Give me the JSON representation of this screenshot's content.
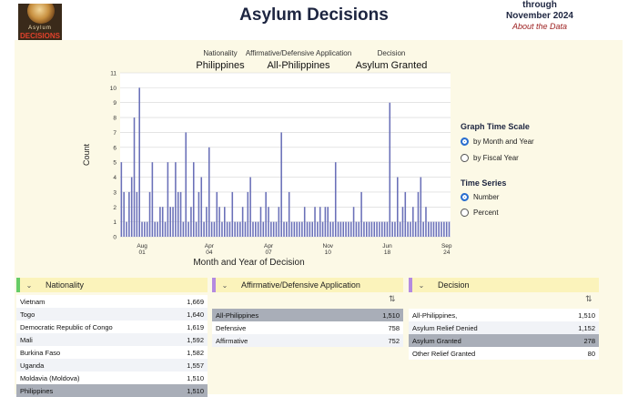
{
  "header": {
    "title": "Asylum Decisions",
    "through_top": "through",
    "through_date": "November 2024",
    "about_link": "About the Data",
    "logo_small": "Asylum",
    "logo_big": "DECISIONS"
  },
  "filters": [
    {
      "label": "Nationality",
      "value": "Philippines"
    },
    {
      "label": "Affirmative/Defensive Application",
      "value": "All-Philippines"
    },
    {
      "label": "Decision",
      "value": "Asylum Granted"
    }
  ],
  "controls": {
    "time_scale_title": "Graph Time Scale",
    "time_scale_options": [
      {
        "label": "by Month and Year",
        "selected": true
      },
      {
        "label": "by Fiscal Year",
        "selected": false
      }
    ],
    "series_title": "Time Series",
    "series_options": [
      {
        "label": "Number",
        "selected": true
      },
      {
        "label": "Percent",
        "selected": false
      }
    ]
  },
  "chart_data": {
    "type": "bar",
    "xlabel": "Month and Year of Decision",
    "ylabel": "Count",
    "ylim": [
      0,
      11
    ],
    "yticks": [
      "0",
      "1",
      "2",
      "3",
      "4",
      "5",
      "6",
      "7",
      "8",
      "9",
      "10",
      "11"
    ],
    "xticks": [
      {
        "top": "Aug",
        "bottom": "01",
        "index": 8
      },
      {
        "top": "Apr",
        "bottom": "04",
        "index": 34
      },
      {
        "top": "Apr",
        "bottom": "07",
        "index": 57
      },
      {
        "top": "Nov",
        "bottom": "10",
        "index": 80
      },
      {
        "top": "Jun",
        "bottom": "18",
        "index": 103
      },
      {
        "top": "Sep",
        "bottom": "24",
        "index": 126
      }
    ],
    "grid": true,
    "color": "#6a70b8",
    "values": [
      5,
      3,
      1,
      3,
      4,
      8,
      3,
      10,
      1,
      1,
      1,
      3,
      5,
      1,
      1,
      2,
      2,
      1,
      5,
      2,
      2,
      5,
      3,
      3,
      1,
      7,
      1,
      2,
      5,
      1,
      3,
      4,
      1,
      2,
      6,
      1,
      1,
      3,
      2,
      1,
      2,
      1,
      1,
      3,
      1,
      1,
      1,
      2,
      1,
      3,
      4,
      1,
      1,
      1,
      2,
      1,
      3,
      2,
      1,
      1,
      1,
      2,
      7,
      1,
      1,
      3,
      1,
      1,
      1,
      1,
      1,
      2,
      1,
      1,
      1,
      2,
      1,
      2,
      1,
      2,
      2,
      1,
      1,
      5,
      1,
      1,
      1,
      1,
      1,
      1,
      2,
      1,
      1,
      3,
      1,
      1,
      1,
      1,
      1,
      1,
      1,
      1,
      1,
      1,
      9,
      1,
      1,
      4,
      1,
      2,
      3,
      1,
      1,
      2,
      1,
      3,
      4,
      1,
      2,
      1,
      1,
      1,
      1,
      1,
      1,
      1,
      1,
      1
    ]
  },
  "panels": {
    "nationality": {
      "title": "Nationality",
      "rows": [
        {
          "name": "Vietnam",
          "value": "1,669"
        },
        {
          "name": "Togo",
          "value": "1,640"
        },
        {
          "name": "Democratic Republic of Congo",
          "value": "1,619"
        },
        {
          "name": "Mali",
          "value": "1,592"
        },
        {
          "name": "Burkina Faso",
          "value": "1,582"
        },
        {
          "name": "Uganda",
          "value": "1,557"
        },
        {
          "name": "Moldavia (Moldova)",
          "value": "1,510"
        },
        {
          "name": "Philippines",
          "value": "1,510"
        }
      ]
    },
    "application": {
      "title": "Affirmative/Defensive Application",
      "rows": [
        {
          "name": "All-Philippines",
          "value": "1,510"
        },
        {
          "name": "Defensive",
          "value": "758"
        },
        {
          "name": "Affirmative",
          "value": "752"
        }
      ]
    },
    "decision": {
      "title": "Decision",
      "rows": [
        {
          "name": "All-Philippines,",
          "value": "1,510"
        },
        {
          "name": "Asylum Relief Denied",
          "value": "1,152"
        },
        {
          "name": "Asylum Granted",
          "value": "278"
        },
        {
          "name": "Other Relief Granted",
          "value": "80"
        }
      ]
    }
  }
}
